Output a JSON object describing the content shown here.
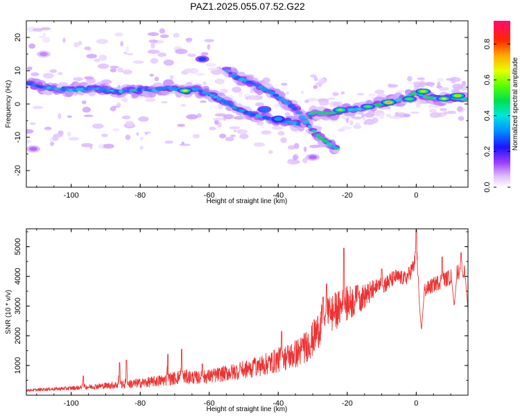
{
  "title": "PAZ1.2025.055.07.52.G22",
  "colors": {
    "snr_line": "#ee3333",
    "axes": "#000000"
  },
  "chart_data": [
    {
      "type": "heatmap",
      "name": "spectrogram",
      "xlabel": "Height of straight line (km)",
      "ylabel": "Frequency (Hz)",
      "xlim": [
        -113,
        15
      ],
      "ylim": [
        -25,
        25
      ],
      "xticks": [
        -100,
        -80,
        -60,
        -40,
        -20,
        0
      ],
      "yticks": [
        -20,
        -10,
        0,
        10,
        20
      ],
      "xtick_labels": [
        "-100",
        "-80",
        "-60",
        "-40",
        "-20",
        "0"
      ],
      "ytick_labels": [
        "-20",
        "-10",
        "0",
        "10",
        "20"
      ],
      "colorbar": {
        "label": "Normalized spectral amplitude",
        "range": [
          0,
          0.93
        ],
        "ticks": [
          0.0,
          0.2,
          0.4,
          0.6,
          0.8
        ],
        "tick_labels": [
          "0.0",
          "0.2",
          "0.4",
          "0.6",
          "0.8"
        ],
        "colormap": "rainbow (white-violet-blue-cyan-green-yellow-orange-red-magenta)"
      },
      "main_ridge": [
        [
          -112,
          6
        ],
        [
          -108,
          5
        ],
        [
          -104,
          4.5
        ],
        [
          -100,
          4.2
        ],
        [
          -96,
          4.5
        ],
        [
          -92,
          4.6
        ],
        [
          -88,
          4
        ],
        [
          -85,
          3.8
        ],
        [
          -80,
          4.3
        ],
        [
          -76,
          4.1
        ],
        [
          -72,
          5
        ],
        [
          -68,
          4
        ],
        [
          -64,
          4.5
        ],
        [
          -60,
          3
        ],
        [
          -56,
          1
        ],
        [
          -52,
          -1.5
        ],
        [
          -48,
          -3
        ],
        [
          -44,
          -4
        ],
        [
          -40,
          -5
        ],
        [
          -36,
          -5.5
        ],
        [
          -33,
          -6.3
        ],
        [
          -31,
          -3
        ],
        [
          -29,
          -2.5
        ],
        [
          -25,
          -2.8
        ],
        [
          -20,
          -1.8
        ],
        [
          -16,
          -1.5
        ],
        [
          -12,
          -0.5
        ],
        [
          -8,
          0.5
        ],
        [
          -4,
          1.5
        ],
        [
          0,
          3.5
        ],
        [
          3,
          2
        ],
        [
          7,
          1.6
        ],
        [
          10,
          2
        ],
        [
          15,
          1.3
        ]
      ],
      "secondary_ridge": [
        [
          -55,
          10
        ],
        [
          -52,
          8
        ],
        [
          -48,
          6.5
        ],
        [
          -45,
          5
        ],
        [
          -42,
          3.5
        ],
        [
          -39,
          1.5
        ],
        [
          -35,
          -1.5
        ],
        [
          -31,
          -6.5
        ],
        [
          -29,
          -9
        ],
        [
          -26,
          -11.5
        ],
        [
          -23,
          -13.5
        ]
      ],
      "features": [
        {
          "x": -62,
          "y": 13.5,
          "amp": 0.25
        },
        {
          "x": -44,
          "y": -1.6,
          "amp": 0.3
        },
        {
          "x": -40,
          "y": -4.5,
          "amp": 0.35
        },
        {
          "x": -30,
          "y": -16,
          "amp": 0.12
        },
        {
          "x": -111,
          "y": -13.5,
          "amp": 0.12
        },
        {
          "x": -108,
          "y": 15,
          "amp": 0.1
        }
      ],
      "peaks": [
        {
          "x": -67,
          "y": 4,
          "amp": 0.65
        },
        {
          "x": -22,
          "y": -1.8,
          "amp": 0.6
        },
        {
          "x": -14,
          "y": -0.8,
          "amp": 0.55
        },
        {
          "x": -8,
          "y": 0.5,
          "amp": 0.75
        },
        {
          "x": -2,
          "y": 1.5,
          "amp": 0.55
        },
        {
          "x": 2,
          "y": 3.8,
          "amp": 0.7
        },
        {
          "x": 8,
          "y": 1.6,
          "amp": 0.65
        },
        {
          "x": 12,
          "y": 2.5,
          "amp": 0.72
        }
      ]
    },
    {
      "type": "line",
      "name": "snr",
      "xlabel": "Height of straight line (km)",
      "ylabel": "SNR (10 * v/v)",
      "xlim": [
        -113,
        15
      ],
      "ylim": [
        0,
        5600
      ],
      "xticks": [
        -100,
        -80,
        -60,
        -40,
        -20,
        0
      ],
      "yticks": [
        1000,
        2000,
        3000,
        4000,
        5000
      ],
      "xtick_labels": [
        "-100",
        "-80",
        "-60",
        "-40",
        "-20",
        "0"
      ],
      "ytick_labels": [
        "1000",
        "2000",
        "3000",
        "4000",
        "5000"
      ],
      "x": [
        -113,
        -108,
        -103,
        -98,
        -93,
        -88,
        -83,
        -78,
        -73,
        -68,
        -63,
        -58,
        -53,
        -48,
        -43,
        -39,
        -36,
        -33,
        -30,
        -28,
        -26,
        -24,
        -22,
        -20,
        -18,
        -15,
        -12,
        -9,
        -6,
        -3,
        -1,
        0,
        1,
        3,
        6,
        8,
        10,
        12,
        15
      ],
      "y": [
        150,
        180,
        200,
        230,
        270,
        300,
        330,
        380,
        450,
        550,
        520,
        600,
        700,
        800,
        950,
        1100,
        1200,
        1350,
        1700,
        2100,
        2350,
        2600,
        2750,
        2900,
        3000,
        3200,
        3450,
        3650,
        3900,
        3850,
        4200,
        4500,
        3300,
        3500,
        3700,
        3800,
        3900,
        4100,
        4000
      ],
      "noise": [
        40,
        50,
        60,
        70,
        90,
        120,
        150,
        170,
        200,
        250,
        220,
        250,
        280,
        320,
        380,
        430,
        470,
        520,
        600,
        650,
        700,
        650,
        620,
        600,
        550,
        420,
        350,
        300,
        260,
        240,
        280,
        300,
        260,
        250,
        260,
        260,
        270,
        280,
        260
      ],
      "spikes": [
        {
          "x": -96.5,
          "y": 650
        },
        {
          "x": -86,
          "y": 1100
        },
        {
          "x": -84,
          "y": 1180
        },
        {
          "x": -72,
          "y": 1380
        },
        {
          "x": -68,
          "y": 1550
        },
        {
          "x": -62,
          "y": 1050
        },
        {
          "x": -51,
          "y": 980
        },
        {
          "x": -47,
          "y": 1080
        },
        {
          "x": -39,
          "y": 2150
        },
        {
          "x": -33,
          "y": 1900
        },
        {
          "x": -27,
          "y": 3300
        },
        {
          "x": -26,
          "y": 3750
        },
        {
          "x": -25,
          "y": 2900
        },
        {
          "x": -21,
          "y": 4950
        },
        {
          "x": -17,
          "y": 3700
        },
        {
          "x": -11,
          "y": 3850
        },
        {
          "x": -10,
          "y": 4250
        },
        {
          "x": 0,
          "y": 5550
        },
        {
          "x": 7.5,
          "y": 4650
        },
        {
          "x": 13,
          "y": 4800
        }
      ],
      "dips": [
        {
          "x": 1.5,
          "y": 2200
        },
        {
          "x": 11,
          "y": 3000
        },
        {
          "x": 15,
          "y": 2900
        }
      ]
    }
  ]
}
